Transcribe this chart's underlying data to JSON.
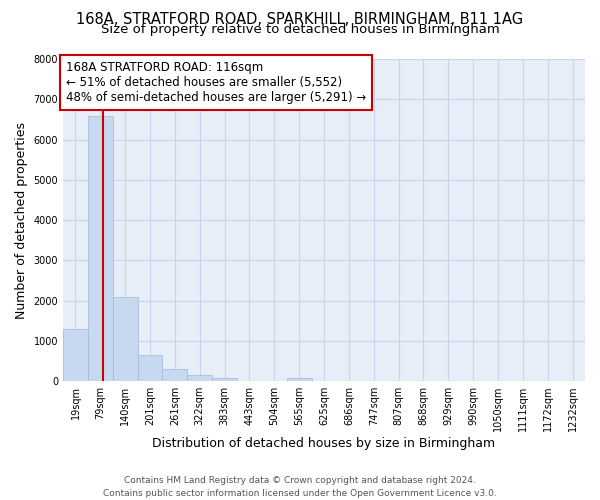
{
  "title1": "168A, STRATFORD ROAD, SPARKHILL, BIRMINGHAM, B11 1AG",
  "title2": "Size of property relative to detached houses in Birmingham",
  "xlabel": "Distribution of detached houses by size in Birmingham",
  "ylabel": "Number of detached properties",
  "bin_labels": [
    "19sqm",
    "79sqm",
    "140sqm",
    "201sqm",
    "261sqm",
    "322sqm",
    "383sqm",
    "443sqm",
    "504sqm",
    "565sqm",
    "625sqm",
    "686sqm",
    "747sqm",
    "807sqm",
    "868sqm",
    "929sqm",
    "990sqm",
    "1050sqm",
    "1111sqm",
    "1172sqm",
    "1232sqm"
  ],
  "bar_values": [
    1300,
    6580,
    2080,
    650,
    300,
    140,
    80,
    0,
    0,
    80,
    0,
    0,
    0,
    0,
    0,
    0,
    0,
    0,
    0,
    0,
    0
  ],
  "bar_color": "#c6d9f0",
  "bar_edge_color": "#a0b8d8",
  "property_line_color": "#cc0000",
  "annotation_text": "168A STRATFORD ROAD: 116sqm\n← 51% of detached houses are smaller (5,552)\n48% of semi-detached houses are larger (5,291) →",
  "annotation_box_color": "#ffffff",
  "annotation_box_edge_color": "#cc0000",
  "ylim": [
    0,
    8000
  ],
  "yticks": [
    0,
    1000,
    2000,
    3000,
    4000,
    5000,
    6000,
    7000,
    8000
  ],
  "footer1": "Contains HM Land Registry data © Crown copyright and database right 2024.",
  "footer2": "Contains public sector information licensed under the Open Government Licence v3.0.",
  "bg_color": "#ffffff",
  "plot_bg_color": "#e8eef8",
  "grid_color": "#c8d4e8",
  "title_fontsize": 10.5,
  "subtitle_fontsize": 9.5,
  "axis_label_fontsize": 9,
  "tick_fontsize": 7,
  "annotation_fontsize": 8.5,
  "footer_fontsize": 6.5
}
